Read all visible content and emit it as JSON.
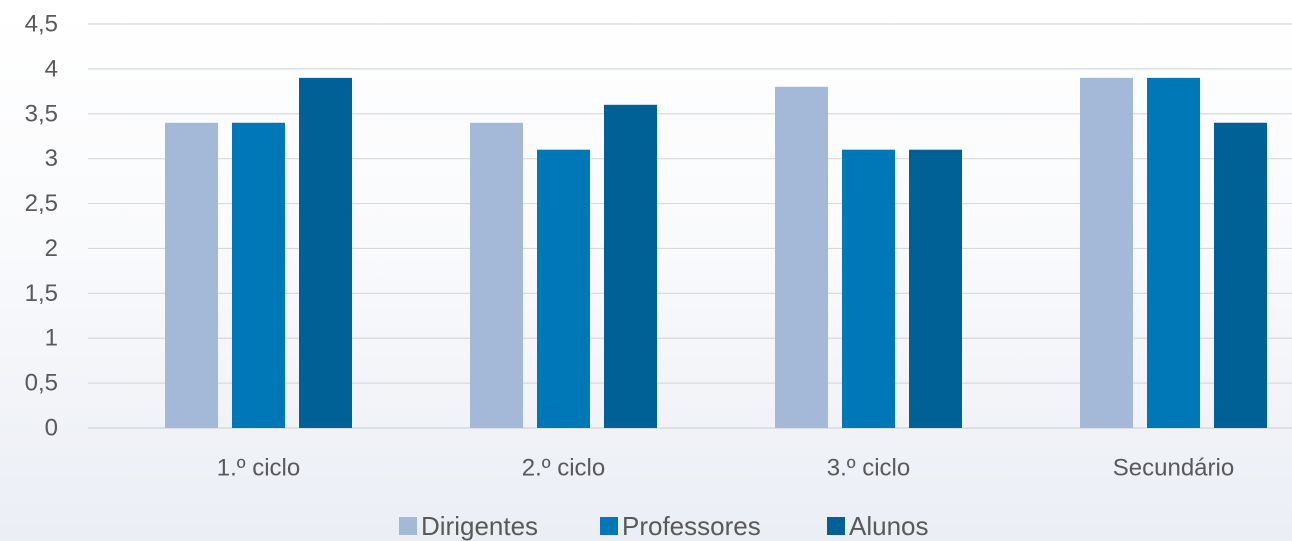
{
  "chart_data": {
    "type": "bar",
    "categories": [
      "1.º ciclo",
      "2.º ciclo",
      "3.º ciclo",
      "Secundário"
    ],
    "series": [
      {
        "name": "Dirigentes",
        "values": [
          3.4,
          3.4,
          3.8,
          3.9
        ],
        "color": "#a3b9d7"
      },
      {
        "name": "Professores",
        "values": [
          3.4,
          3.1,
          3.1,
          3.9
        ],
        "color": "#0077b6"
      },
      {
        "name": "Alunos",
        "values": [
          3.9,
          3.6,
          3.1,
          3.4
        ],
        "color": "#006197"
      }
    ],
    "ylim": [
      0,
      4.5
    ],
    "yticks": [
      0,
      0.5,
      1,
      1.5,
      2,
      2.5,
      3,
      3.5,
      4,
      4.5
    ],
    "ytick_labels": [
      "0",
      "0,5",
      "1",
      "1,5",
      "2",
      "2,5",
      "3",
      "3,5",
      "4",
      "4,5"
    ],
    "grid": true,
    "legend_position": "bottom",
    "title": "",
    "xlabel": "",
    "ylabel": ""
  }
}
